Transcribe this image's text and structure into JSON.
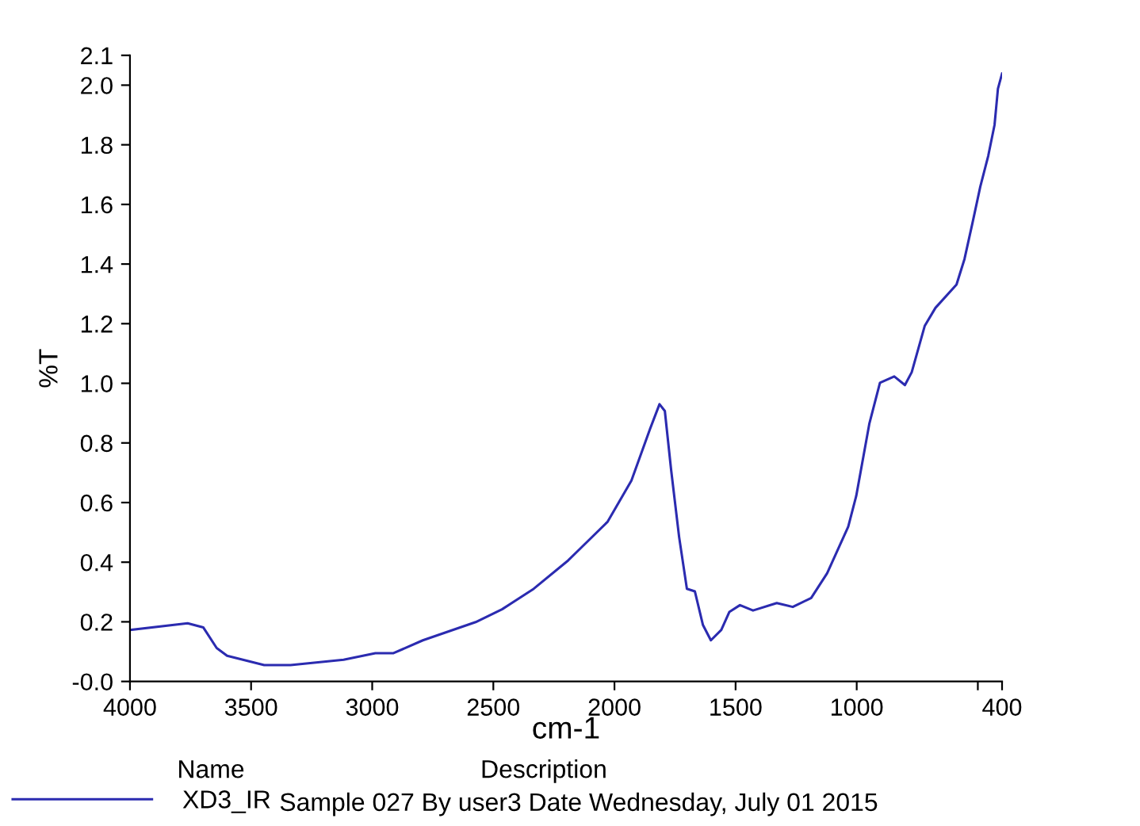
{
  "chart_data": {
    "type": "line",
    "xlabel": "cm-1",
    "ylabel": "%T",
    "x": [
      3995,
      3762,
      3697,
      3642,
      3599,
      3446,
      3337,
      3118,
      2987,
      2912,
      2791,
      2573,
      2464,
      2333,
      2191,
      2137,
      2028,
      1930,
      1853,
      1814,
      1792,
      1766,
      1733,
      1701,
      1668,
      1635,
      1602,
      1559,
      1526,
      1482,
      1428,
      1330,
      1264,
      1188,
      1122,
      1035,
      1002,
      948,
      904,
      845,
      801,
      773,
      719,
      675,
      588,
      555,
      522,
      490,
      457,
      431,
      417,
      400
    ],
    "series": [
      {
        "name": "XD3_IR",
        "color": "#2b2bb0",
        "values": [
          0.173,
          0.195,
          0.181,
          0.112,
          0.086,
          0.055,
          0.055,
          0.073,
          0.095,
          0.095,
          0.138,
          0.199,
          0.242,
          0.311,
          0.406,
          0.449,
          0.536,
          0.674,
          0.847,
          0.93,
          0.907,
          0.709,
          0.484,
          0.311,
          0.302,
          0.19,
          0.138,
          0.173,
          0.233,
          0.256,
          0.238,
          0.263,
          0.25,
          0.28,
          0.363,
          0.519,
          0.622,
          0.864,
          1.002,
          1.023,
          0.994,
          1.037,
          1.193,
          1.253,
          1.331,
          1.417,
          1.538,
          1.659,
          1.763,
          1.867,
          1.988,
          2.039
        ]
      }
    ],
    "xlim": [
      4000,
      400
    ],
    "xticks": [
      4000,
      3500,
      3000,
      2500,
      2000,
      1500,
      1000,
      {
        "value": 500,
        "label": null
      },
      400
    ],
    "ylim": [
      0,
      2.1
    ],
    "yticks": [
      {
        "value": 0,
        "label": "-0.0"
      },
      {
        "value": 0.2,
        "label": "0.2"
      },
      {
        "value": 0.4,
        "label": "0.4"
      },
      {
        "value": 0.6,
        "label": "0.6"
      },
      {
        "value": 0.8,
        "label": "0.8"
      },
      {
        "value": 1.0,
        "label": "1.0"
      },
      {
        "value": 1.2,
        "label": "1.2"
      },
      {
        "value": 1.4,
        "label": "1.4"
      },
      {
        "value": 1.6,
        "label": "1.6"
      },
      {
        "value": 1.8,
        "label": "1.8"
      },
      {
        "value": 2.0,
        "label": "2.0"
      },
      {
        "value": 2.1,
        "label": "2.1"
      }
    ],
    "grid": false,
    "legend": "bottom left",
    "line_style": "solid",
    "marker": "none",
    "annotations": [
      "Name",
      "Description",
      "Sample 027 By user3 Date Wednesday, July 01 2015"
    ]
  }
}
